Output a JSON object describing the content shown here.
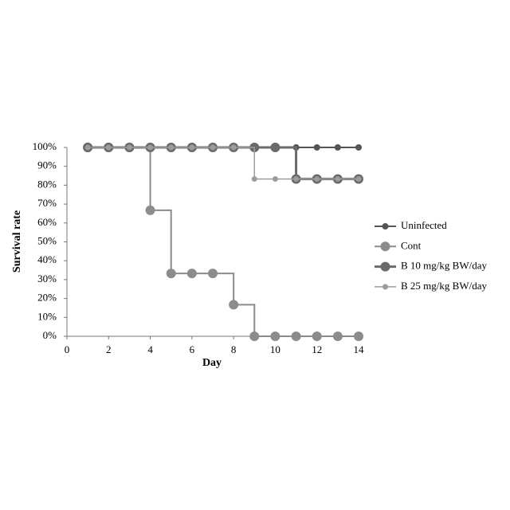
{
  "chart_data": {
    "type": "step",
    "x_label": "Day",
    "y_label": "Survival rate",
    "x": [
      1,
      2,
      3,
      4,
      5,
      6,
      7,
      8,
      9,
      10,
      11,
      12,
      13,
      14
    ],
    "series": [
      {
        "name": "Uninfected",
        "color": "#555555",
        "values": [
          100,
          100,
          100,
          100,
          100,
          100,
          100,
          100,
          100,
          100,
          100,
          100,
          100,
          100
        ]
      },
      {
        "name": "Cont",
        "color": "#8c8c8c",
        "values": [
          100,
          100,
          100,
          66.7,
          33.3,
          33.3,
          33.3,
          16.7,
          0,
          0,
          0,
          0,
          0,
          0
        ]
      },
      {
        "name": "B 10 mg/kg BW/day",
        "color": "#6a6a6a",
        "values": [
          100,
          100,
          100,
          100,
          100,
          100,
          100,
          100,
          100,
          100,
          83.3,
          83.3,
          83.3,
          83.3
        ]
      },
      {
        "name": "B 25 mg/kg BW/day",
        "color": "#9c9c9c",
        "values": [
          100,
          100,
          100,
          100,
          100,
          100,
          100,
          100,
          83.3,
          83.3,
          83.3,
          83.3,
          83.3,
          83.3
        ]
      }
    ],
    "xlim": [
      0,
      14
    ],
    "xticks": [
      0,
      2,
      4,
      6,
      8,
      10,
      12,
      14
    ],
    "ylim": [
      0,
      100
    ],
    "yticks": [
      {
        "value": 0,
        "label": "0%"
      },
      {
        "value": 10,
        "label": "10%"
      },
      {
        "value": 20,
        "label": "20%"
      },
      {
        "value": 30,
        "label": "30%"
      },
      {
        "value": 40,
        "label": "40%"
      },
      {
        "value": 50,
        "label": "50%"
      },
      {
        "value": 60,
        "label": "60%"
      },
      {
        "value": 70,
        "label": "70%"
      },
      {
        "value": 80,
        "label": "80%"
      },
      {
        "value": 90,
        "label": "90%"
      },
      {
        "value": 100,
        "label": "100%"
      }
    ],
    "legend": "right"
  }
}
